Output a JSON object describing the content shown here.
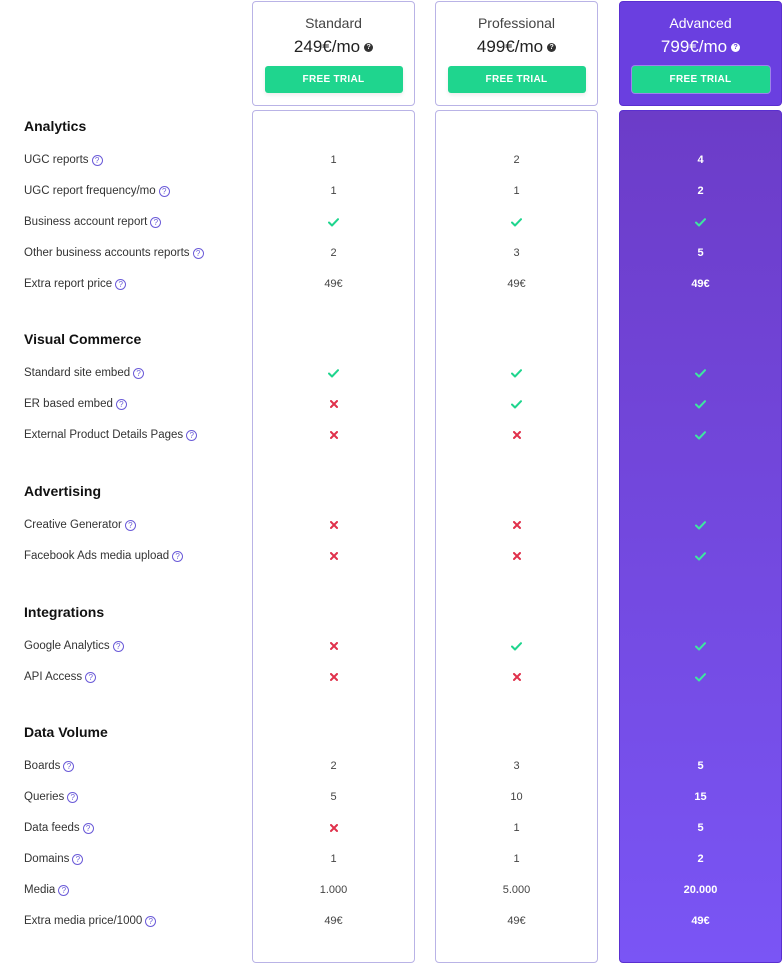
{
  "plans": [
    {
      "key": "standard",
      "name": "Standard",
      "price": "249€/mo",
      "cta": "FREE TRIAL"
    },
    {
      "key": "professional",
      "name": "Professional",
      "price": "499€/mo",
      "cta": "FREE TRIAL"
    },
    {
      "key": "advanced",
      "name": "Advanced",
      "price": "799€/mo",
      "cta": "FREE TRIAL"
    }
  ],
  "colors": {
    "accent": "#6a3fe0",
    "button": "#1fd58e",
    "check": "#1fd58e",
    "cross": "#e0314b"
  },
  "sections": [
    {
      "title": "Analytics",
      "features": [
        {
          "label": "UGC reports",
          "values": [
            "1",
            "2",
            "4"
          ]
        },
        {
          "label": "UGC report frequency/mo",
          "values": [
            "1",
            "1",
            "2"
          ]
        },
        {
          "label": "Business account report",
          "values": [
            "check",
            "check",
            "check"
          ]
        },
        {
          "label": "Other business accounts reports",
          "values": [
            "2",
            "3",
            "5"
          ]
        },
        {
          "label": "Extra report price",
          "values": [
            "49€",
            "49€",
            "49€"
          ]
        }
      ]
    },
    {
      "title": "Visual Commerce",
      "features": [
        {
          "label": "Standard site embed",
          "values": [
            "check",
            "check",
            "check"
          ]
        },
        {
          "label": "ER based embed",
          "values": [
            "cross",
            "check",
            "check"
          ]
        },
        {
          "label": "External Product Details Pages",
          "values": [
            "cross",
            "cross",
            "check"
          ]
        }
      ]
    },
    {
      "title": "Advertising",
      "features": [
        {
          "label": "Creative Generator",
          "values": [
            "cross",
            "cross",
            "check"
          ]
        },
        {
          "label": "Facebook Ads media upload",
          "values": [
            "cross",
            "cross",
            "check"
          ]
        }
      ]
    },
    {
      "title": "Integrations",
      "features": [
        {
          "label": "Google Analytics",
          "values": [
            "cross",
            "check",
            "check"
          ]
        },
        {
          "label": "API Access",
          "values": [
            "cross",
            "cross",
            "check"
          ]
        }
      ]
    },
    {
      "title": "Data Volume",
      "features": [
        {
          "label": "Boards",
          "values": [
            "2",
            "3",
            "5"
          ]
        },
        {
          "label": "Queries",
          "values": [
            "5",
            "10",
            "15"
          ]
        },
        {
          "label": "Data feeds",
          "values": [
            "cross",
            "1",
            "5"
          ]
        },
        {
          "label": "Domains",
          "values": [
            "1",
            "1",
            "2"
          ]
        },
        {
          "label": "Media",
          "values": [
            "1.000",
            "5.000",
            "20.000"
          ]
        },
        {
          "label": "Extra media price/1000",
          "values": [
            "49€",
            "49€",
            "49€"
          ]
        }
      ]
    }
  ]
}
